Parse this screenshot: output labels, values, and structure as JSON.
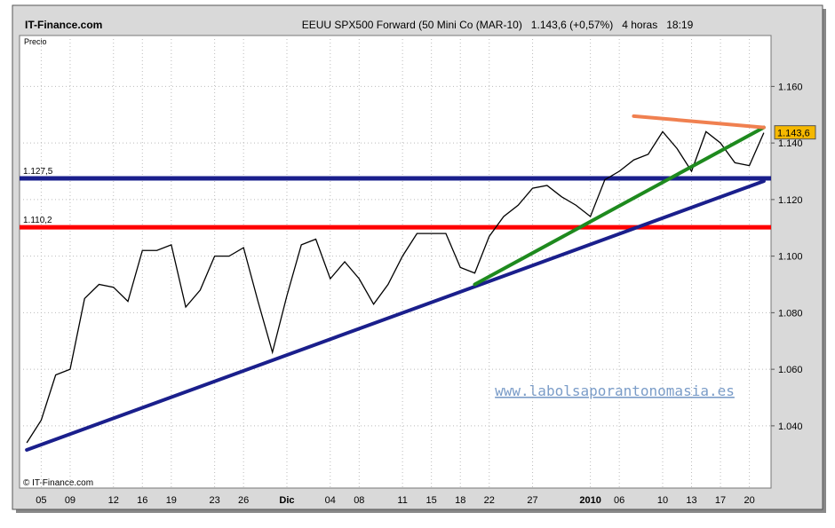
{
  "chart_data": {
    "type": "line",
    "site": "IT-Finance.com",
    "title": "EEUU SPX500 Forward (50 Mini Co (MAR-10)   1.143,6 (+0,57%)   4 horas   18:19",
    "y_label": "Precio",
    "copyright": "© IT-Finance.com",
    "watermark": "www.labolsaporantonomasia.es",
    "last_label": "1.143,6",
    "categories": [
      null,
      "05",
      null,
      "09",
      null,
      null,
      "12",
      null,
      "16",
      null,
      "19",
      null,
      null,
      "23",
      null,
      "26",
      null,
      null,
      "Dic",
      null,
      null,
      "04",
      null,
      "08",
      null,
      null,
      "11",
      null,
      "15",
      null,
      "18",
      null,
      "22",
      null,
      null,
      "27",
      null,
      null,
      null,
      "2010",
      null,
      "06",
      null,
      null,
      "10",
      null,
      "13",
      null,
      "17",
      null,
      "20",
      null
    ],
    "series": [
      {
        "name": "Precio",
        "color": "#000000",
        "values": [
          1.034,
          1.042,
          1.058,
          1.06,
          1.085,
          1.09,
          1.089,
          1.084,
          1.102,
          1.102,
          1.104,
          1.082,
          1.088,
          1.1,
          1.1,
          1.103,
          1.084,
          1.066,
          1.086,
          1.104,
          1.106,
          1.092,
          1.098,
          1.092,
          1.083,
          1.09,
          1.1,
          1.108,
          1.108,
          1.108,
          1.096,
          1.094,
          1.107,
          1.114,
          1.118,
          1.124,
          1.125,
          1.121,
          1.118,
          1.114,
          1.127,
          1.13,
          1.134,
          1.136,
          1.144,
          1.138,
          1.13,
          1.144,
          1.14,
          1.133,
          1.132,
          1.1436
        ]
      }
    ],
    "levels": [
      {
        "value": 1.1275,
        "label": "1.127,5",
        "color": "#1a1f8c"
      },
      {
        "value": 1.1102,
        "label": "1.110,2",
        "color": "#ff0000"
      }
    ],
    "trendlines": [
      {
        "color": "#1a1f8c",
        "from": [
          0,
          1.0315
        ],
        "to": [
          51,
          1.1265
        ]
      },
      {
        "color": "#1e8a1e",
        "from": [
          31,
          1.09
        ],
        "to": [
          51,
          1.1455
        ]
      },
      {
        "color": "#f08050",
        "from": [
          42,
          1.1495
        ],
        "to": [
          51,
          1.1455
        ]
      }
    ],
    "ylim": [
      1.018,
      1.178
    ],
    "yticks": [
      {
        "value": 1.04,
        "label": "1.040"
      },
      {
        "value": 1.06,
        "label": "1.060"
      },
      {
        "value": 1.08,
        "label": "1.080"
      },
      {
        "value": 1.1,
        "label": "1.100"
      },
      {
        "value": 1.12,
        "label": "1.120"
      },
      {
        "value": 1.14,
        "label": "1.140"
      },
      {
        "value": 1.16,
        "label": "1.160"
      }
    ],
    "grid": true
  }
}
